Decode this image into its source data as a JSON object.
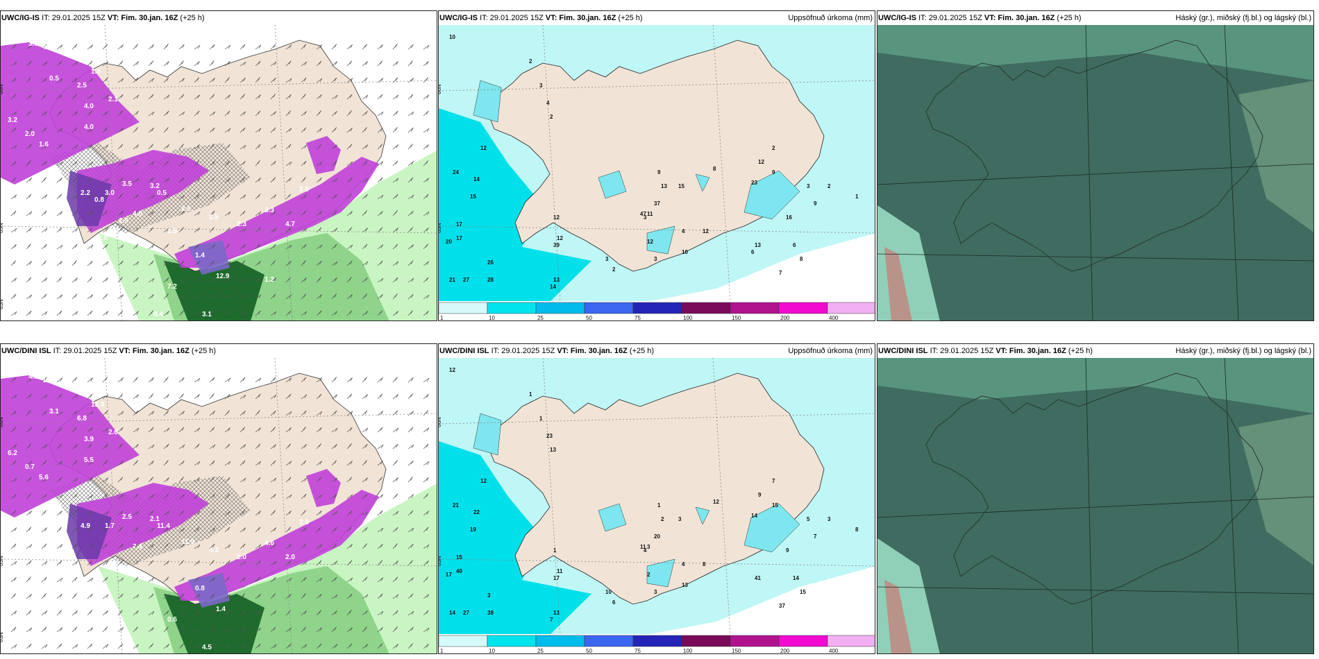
{
  "colors": {
    "land": "#f1e4d6",
    "precip_light": "#bff6f6",
    "precip_cyan": "#00e0ea",
    "green_light": "#c9f5c2",
    "green_dark": "#1f6b2e",
    "purple": "#c040d8",
    "magenta": "#e65ae6",
    "cloud_dark": "#3f6b60",
    "cloud_mid": "#6f9a80"
  },
  "panels": [
    {
      "id": "r1c1",
      "model": "UWC/IG-IS",
      "it": "IT: 29.01.2025 15Z",
      "vt_label": "VT: Fim. 30.jan. 16Z",
      "lead": "(+25 h)",
      "title_right": ""
    },
    {
      "id": "r1c2",
      "model": "UWC/IG-IS",
      "it": "IT: 29.01.2025 15Z",
      "vt_label": "VT: Fim. 30.jan. 16Z",
      "lead": "(+25 h)",
      "title_right": "Uppsöfnuð úrkoma (mm)"
    },
    {
      "id": "r1c3",
      "model": "UWC/IG-IS",
      "it": "IT: 29.01.2025 15Z",
      "vt_label": "VT: Fim. 30.jan. 16Z",
      "lead": "(+25 h)",
      "title_right": "Háský (gr.), miðský (fj.bl.) og lágský (bl.)"
    },
    {
      "id": "r2c1",
      "model": "UWC/DINI ISL",
      "it": "IT: 29.01.2025 15Z",
      "vt_label": "VT: Fim. 30.jan. 16Z",
      "lead": "(+25 h)",
      "title_right": ""
    },
    {
      "id": "r2c2",
      "model": "UWC/DINI ISL",
      "it": "IT: 29.01.2025 15Z",
      "vt_label": "VT: Fim. 30.jan. 16Z",
      "lead": "(+25 h)",
      "title_right": "Uppsöfnuð úrkoma (mm)"
    },
    {
      "id": "r2c3",
      "model": "UWC/DINI ISL",
      "it": "IT: 29.01.2025 15Z",
      "vt_label": "VT: Fim. 30.jan. 16Z",
      "lead": "(+25 h)",
      "title_right": "Háský (gr.), miðský (fj.bl.) og lágský (bl.)"
    }
  ],
  "axis_labels": {
    "lat65": "65N",
    "lat66": "66N",
    "lat63": "63N",
    "lon20": "20W",
    "lon15": "15W",
    "lon25": "25W"
  },
  "colorbar": {
    "ticks": [
      "1",
      "10",
      "25",
      "50",
      "75",
      "100",
      "150",
      "200",
      "400"
    ],
    "colors": [
      "#d6fafa",
      "#00e4ec",
      "#00bcec",
      "#3a66f0",
      "#2424b8",
      "#7a0a5a",
      "#b0128e",
      "#f20ad0",
      "#f2b0f2"
    ]
  },
  "wind_values_r1": [
    "3.6",
    "4.3",
    "3.1",
    "0.5",
    "2.5",
    "4.0",
    "2.1",
    "1.8",
    "3.2",
    "2.0",
    "1.6",
    "4.0",
    "2.2",
    "3.0",
    "3.5",
    "3.2",
    "0.5",
    "4.0",
    "2.8",
    "1.5",
    "2.3",
    "3.3",
    "4.7",
    "2.0",
    "12.9",
    "1.4",
    "7.2",
    "3.1",
    "0.4",
    "1.9",
    "0.8",
    "2.0",
    "1.5",
    "1.2"
  ],
  "wind_values_r2": [
    "4.8",
    "1.6",
    "2.8",
    "3.1",
    "6.8",
    "3.9",
    "2.6",
    "12.3",
    "6.2",
    "0.7",
    "5.6",
    "5.5",
    "4.9",
    "1.7",
    "2.5",
    "2.1",
    "11.4",
    "7.4",
    "11.9",
    "4.3",
    "2.0",
    "4.6",
    "2.0",
    "2.9",
    "1.4",
    "0.8",
    "0.6",
    "4.5"
  ],
  "precip_values_r1": [
    "10",
    "2",
    "3",
    "4",
    "2",
    "12",
    "24",
    "14",
    "15",
    "17",
    "20",
    "17",
    "21",
    "27",
    "28",
    "26",
    "39",
    "14",
    "13",
    "12",
    "12",
    "9",
    "13",
    "15",
    "11",
    "3",
    "4",
    "10",
    "9",
    "23",
    "12",
    "2",
    "3",
    "2",
    "1",
    "9",
    "16",
    "6",
    "8",
    "7",
    "13",
    "8",
    "37",
    "47",
    "12",
    "3",
    "3",
    "2",
    "12",
    "6"
  ],
  "precip_values_r2": [
    "12",
    "1",
    "1",
    "23",
    "13",
    "12",
    "21",
    "22",
    "19",
    "15",
    "17",
    "40",
    "14",
    "27",
    "38",
    "3",
    "17",
    "7",
    "13",
    "11",
    "1",
    "1",
    "2",
    "3",
    "3",
    "4",
    "4",
    "13",
    "15",
    "14",
    "9",
    "7",
    "5",
    "3",
    "8",
    "7",
    "9",
    "14",
    "15",
    "37",
    "41",
    "12",
    "20",
    "11",
    "2",
    "3",
    "10",
    "6",
    "8"
  ]
}
